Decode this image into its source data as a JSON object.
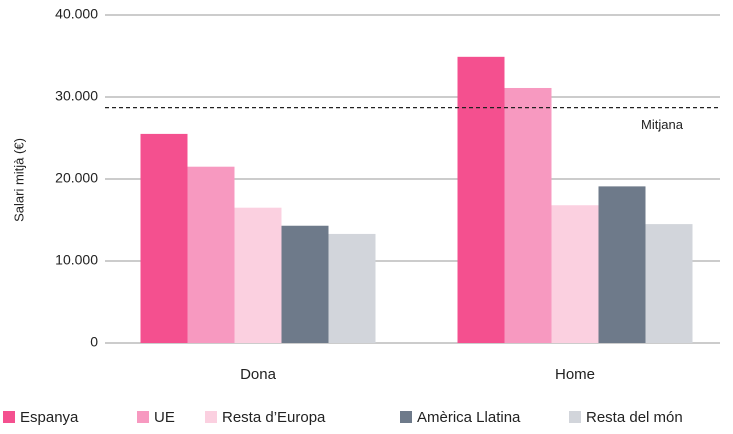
{
  "chart_data": {
    "type": "bar",
    "y_label": "Salari mitjà (€)",
    "categories": [
      "Dona",
      "Home"
    ],
    "series": [
      {
        "name": "Espanya",
        "color": "#f4508f",
        "values": [
          25500,
          34900
        ]
      },
      {
        "name": "UE",
        "color": "#f799c0",
        "values": [
          21500,
          31100
        ]
      },
      {
        "name": "Resta d’Europa",
        "color": "#fbd0e0",
        "values": [
          16500,
          16800
        ]
      },
      {
        "name": "Amèrica Llatina",
        "color": "#6e7a8a",
        "values": [
          14300,
          19100
        ]
      },
      {
        "name": "Resta del món",
        "color": "#d2d5db",
        "values": [
          13300,
          14500
        ]
      }
    ],
    "reference_line": {
      "value": 28700,
      "label": "Mitjana"
    },
    "ylim": [
      0,
      40000
    ],
    "yticks": [
      0,
      {
        "value": 10000,
        "label": "10.000"
      },
      {
        "value": 20000,
        "label": "20.000"
      },
      {
        "value": 30000,
        "label": "30.000"
      },
      {
        "value": 40000,
        "label": "40.000"
      }
    ],
    "grid": true,
    "legend": "bottom"
  }
}
